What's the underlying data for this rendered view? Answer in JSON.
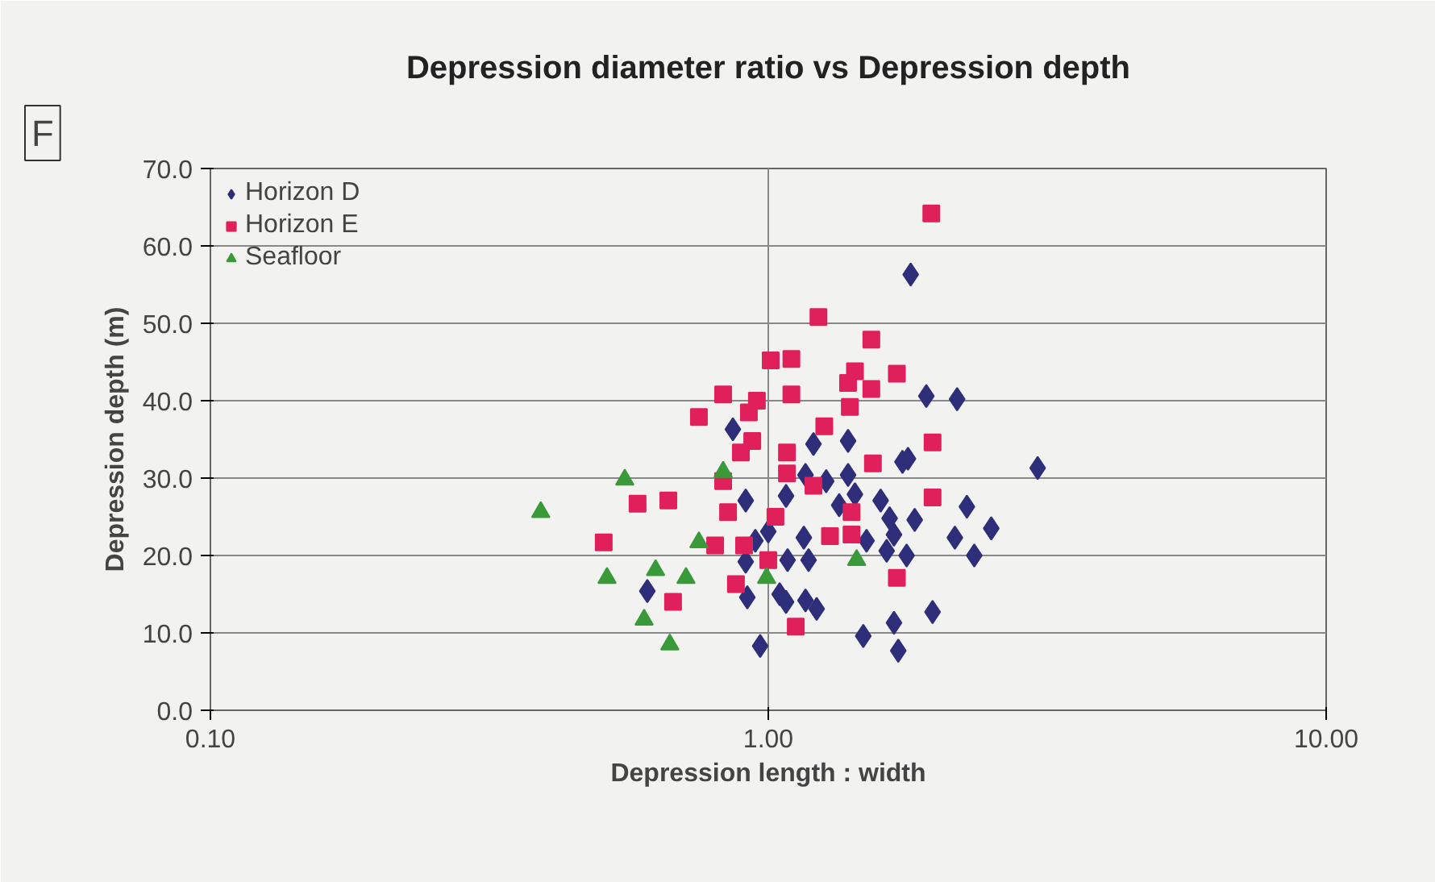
{
  "chart_data": {
    "type": "scatter",
    "title": "Depression diameter ratio vs Depression depth",
    "xlabel": "Depression length : width",
    "ylabel": "Depression depth (m)",
    "annotations": [
      "F"
    ],
    "log": "x",
    "xlim": [
      0.1,
      10
    ],
    "xticks": [
      {
        "value": 0.1,
        "label": "0.10"
      },
      {
        "value": 1,
        "label": "1.00"
      },
      {
        "value": 10,
        "label": "10.00"
      }
    ],
    "ylim": [
      0,
      70
    ],
    "yticks": [
      {
        "value": 0,
        "label": "0.0"
      },
      {
        "value": 10,
        "label": "10.0"
      },
      {
        "value": 20,
        "label": "20.0"
      },
      {
        "value": 30,
        "label": "30.0"
      },
      {
        "value": 40,
        "label": "40.0"
      },
      {
        "value": 50,
        "label": "50.0"
      },
      {
        "value": 60,
        "label": "60.0"
      },
      {
        "value": 70,
        "label": "70.0"
      }
    ],
    "grid": true,
    "legend": "top left",
    "series": [
      {
        "name": "Horizon D",
        "color": "#2e2e7a",
        "marker": "diamond",
        "x": [
          0.864,
          1.205,
          0.911,
          1.076,
          1.166,
          1.0,
          0.948,
          1.158,
          1.083,
          1.181,
          0.911,
          0.607,
          0.917,
          1.048,
          1.076,
          1.166,
          1.221,
          0.967,
          1.8,
          1.92,
          2.18,
          3.04,
          1.39,
          1.74,
          1.78,
          1.39,
          1.27,
          1.43,
          1.34,
          1.59,
          1.65,
          1.83,
          2.27,
          1.68,
          1.5,
          2.16,
          2.51,
          1.63,
          1.77,
          2.34,
          1.68,
          1.97,
          1.48,
          1.71
        ],
        "values": [
          36.3,
          34.4,
          27.1,
          27.7,
          30.4,
          23.1,
          21.9,
          22.3,
          19.4,
          19.4,
          19.2,
          15.4,
          14.6,
          15.0,
          14.0,
          14.2,
          13.1,
          8.3,
          56.3,
          40.6,
          40.2,
          31.3,
          34.8,
          32.1,
          32.5,
          30.4,
          29.6,
          27.9,
          26.5,
          27.1,
          24.8,
          24.6,
          26.3,
          22.7,
          21.9,
          22.3,
          23.5,
          20.6,
          20.0,
          20.0,
          11.3,
          12.7,
          9.6,
          7.7
        ]
      },
      {
        "name": "Horizon E",
        "color": "#e0205a",
        "marker": "square",
        "x": [
          1.23,
          1.01,
          1.1,
          0.83,
          0.954,
          1.1,
          0.923,
          0.751,
          1.26,
          0.936,
          0.893,
          1.08,
          1.08,
          0.83,
          1.205,
          0.583,
          0.662,
          0.847,
          1.03,
          0.507,
          0.803,
          0.905,
          1.0,
          1.29,
          0.875,
          0.675,
          1.12,
          1.96,
          1.53,
          1.43,
          1.39,
          1.53,
          1.7,
          1.4,
          1.97,
          1.54,
          1.97,
          1.41,
          1.41,
          1.7
        ],
        "values": [
          50.8,
          45.2,
          45.4,
          40.8,
          40.0,
          40.8,
          38.5,
          37.9,
          36.7,
          34.8,
          33.3,
          33.3,
          30.6,
          29.6,
          29.0,
          26.7,
          27.1,
          25.6,
          25.0,
          21.7,
          21.3,
          21.3,
          19.4,
          22.5,
          16.3,
          14.0,
          10.8,
          64.2,
          47.9,
          43.8,
          42.3,
          41.5,
          43.5,
          39.2,
          34.6,
          31.9,
          27.5,
          25.6,
          22.7,
          17.1
        ]
      },
      {
        "name": "Seafloor",
        "color": "#3a9a3a",
        "marker": "triangle",
        "x": [
          0.391,
          0.553,
          0.83,
          0.514,
          0.628,
          0.712,
          0.751,
          0.599,
          0.666,
          0.993,
          1.44
        ],
        "values": [
          25.6,
          29.8,
          30.8,
          17.1,
          18.1,
          17.1,
          21.7,
          11.7,
          8.5,
          17.1,
          19.4
        ]
      }
    ]
  }
}
